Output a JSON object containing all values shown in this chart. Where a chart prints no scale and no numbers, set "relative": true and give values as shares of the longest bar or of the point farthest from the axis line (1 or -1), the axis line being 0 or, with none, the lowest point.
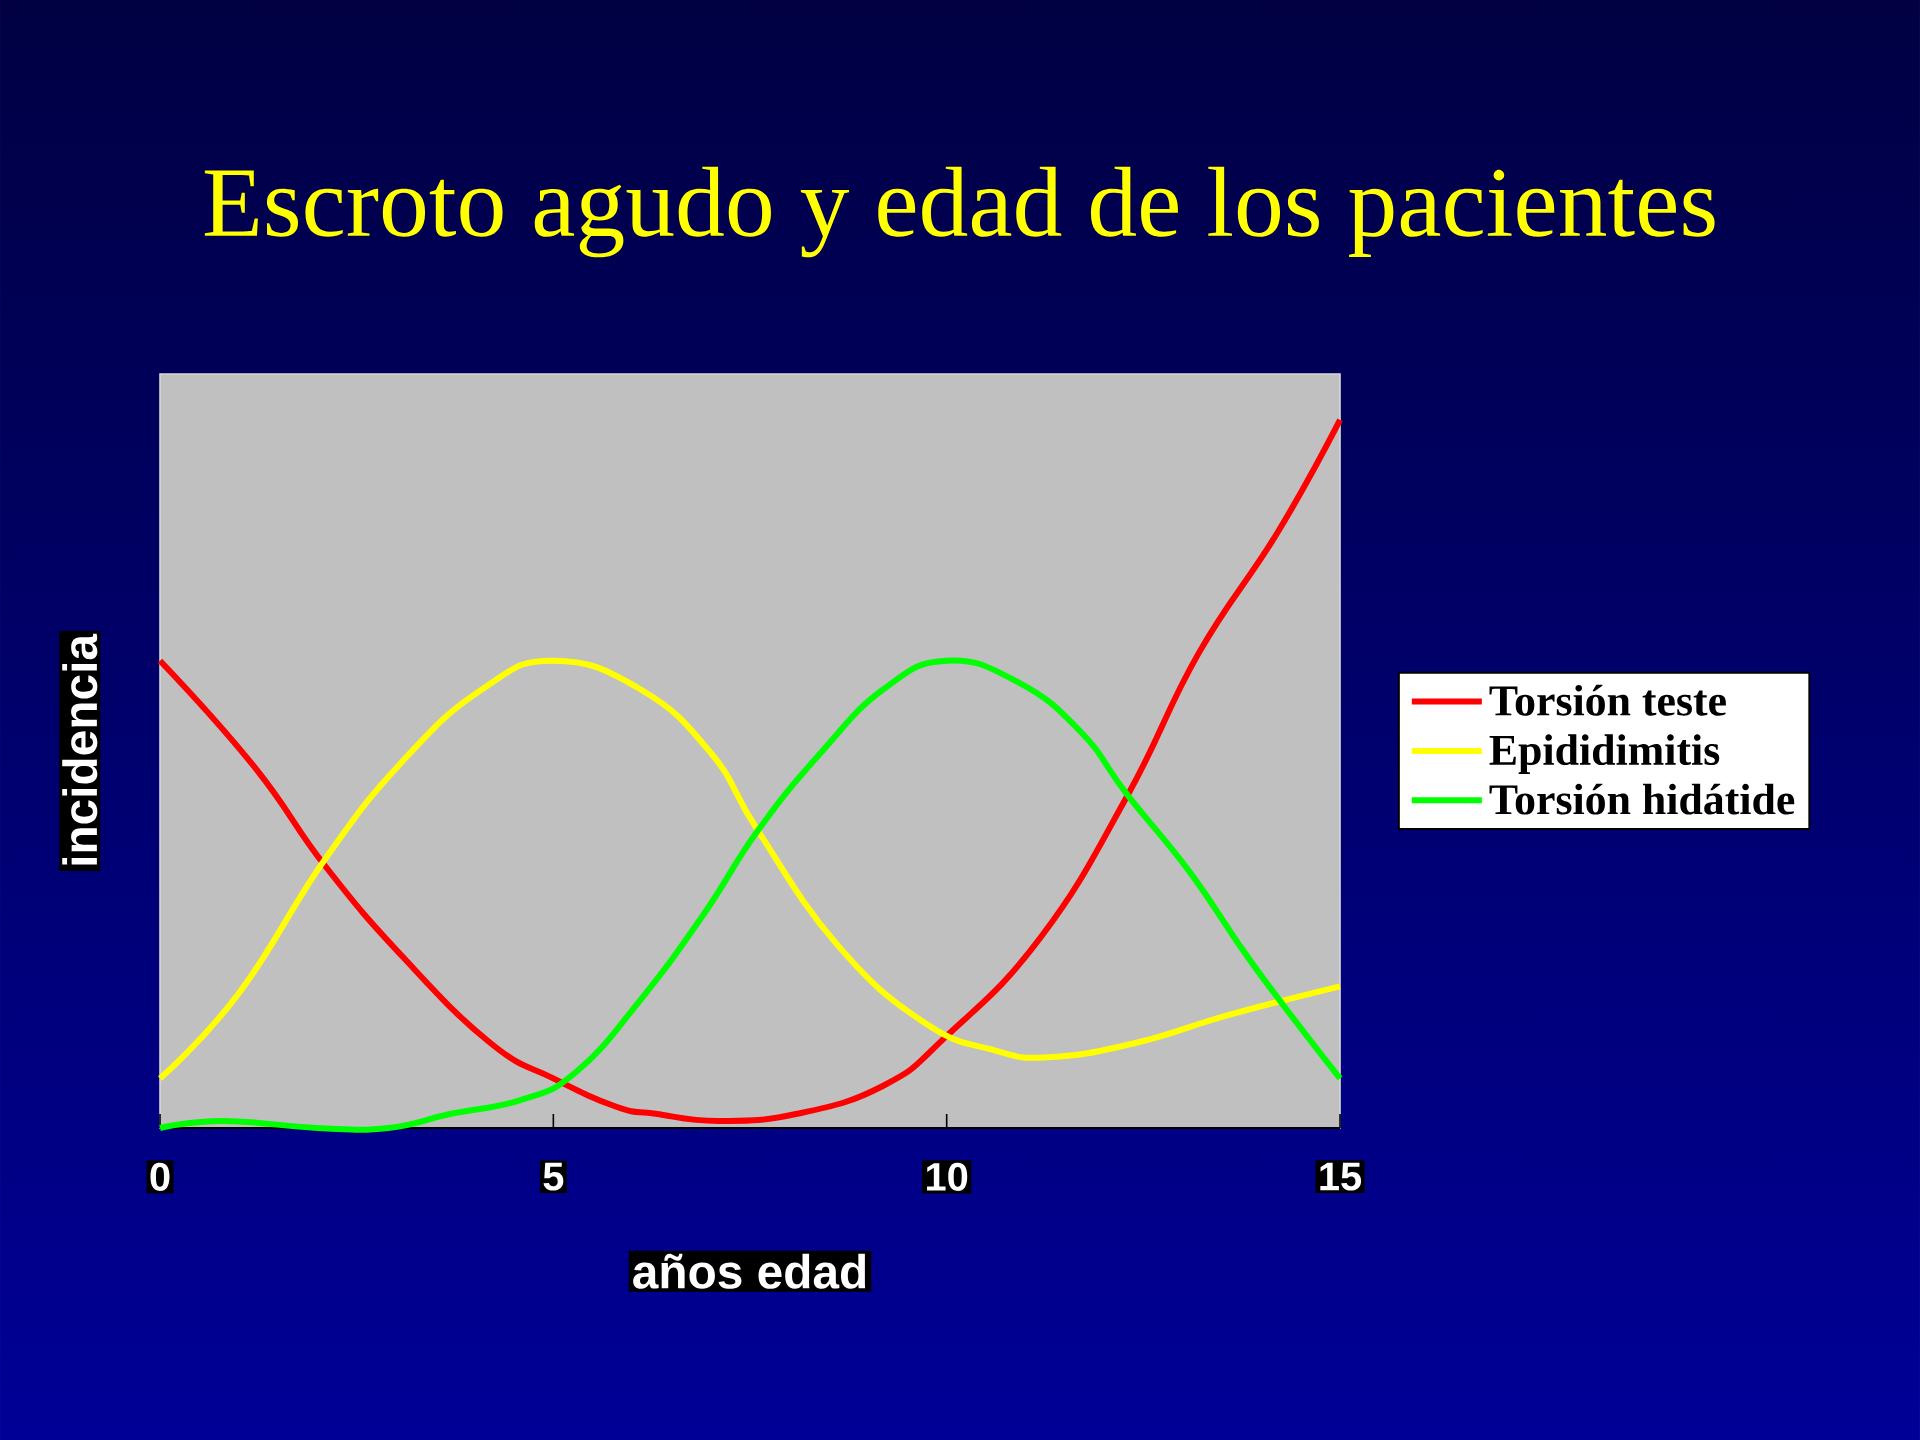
{
  "chart_data": {
    "type": "line",
    "title": "Escroto agudo y edad de los pacientes",
    "xlabel": "años edad",
    "ylabel": "incidencia",
    "xlim": [
      0,
      15
    ],
    "xticks": [
      0,
      5,
      10,
      15
    ],
    "relative": true,
    "tick_labels": "x",
    "legend": "right",
    "series": [
      {
        "name": "Torsión teste",
        "color": "#ff0000",
        "x": [
          0,
          1.2,
          2.1,
          3.1,
          4.2,
          5,
          5.8,
          6.3,
          7.1,
          8.1,
          9.2,
          10,
          11.2,
          12.3,
          13.2,
          14.2,
          15
        ],
        "values": [
          0.66,
          0.51,
          0.37,
          0.24,
          0.12,
          0.07,
          0.03,
          0.02,
          0.01,
          0.02,
          0.06,
          0.13,
          0.27,
          0.47,
          0.67,
          0.84,
          1
        ]
      },
      {
        "name": "Epididimitis",
        "color": "#ffff00",
        "x": [
          0,
          1,
          2.1,
          3.1,
          4.1,
          5,
          6.1,
          7,
          7.6,
          8.6,
          9.7,
          10.6,
          11.3,
          12.4,
          13.6,
          15
        ],
        "values": [
          0.07,
          0.19,
          0.38,
          0.52,
          0.62,
          0.66,
          0.62,
          0.53,
          0.42,
          0.26,
          0.15,
          0.11,
          0.1,
          0.12,
          0.16,
          0.2
        ]
      },
      {
        "name": "Torsión hidátide",
        "color": "#00ff00",
        "x": [
          0,
          0.8,
          2,
          2.9,
          3.7,
          4.6,
          5.3,
          6.1,
          6.9,
          7.6,
          8.4,
          9.2,
          10,
          10.9,
          11.7,
          12.3,
          13.1,
          13.9,
          15
        ],
        "values": [
          0,
          0.01,
          0,
          0,
          0.02,
          0.04,
          0.08,
          0.18,
          0.3,
          0.42,
          0.53,
          0.62,
          0.66,
          0.63,
          0.56,
          0.47,
          0.36,
          0.23,
          0.07
        ]
      }
    ]
  }
}
